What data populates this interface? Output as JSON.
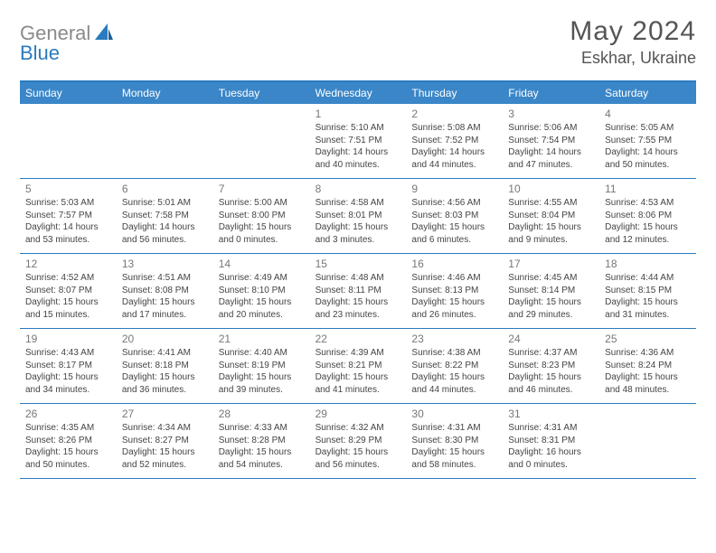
{
  "brand": {
    "part1": "General",
    "part2": "Blue"
  },
  "title": "May 2024",
  "location": "Eskhar, Ukraine",
  "calendar": {
    "header_bg": "#3a86c8",
    "rule_color": "#2a7bbf",
    "day_names": [
      "Sunday",
      "Monday",
      "Tuesday",
      "Wednesday",
      "Thursday",
      "Friday",
      "Saturday"
    ],
    "weeks": [
      [
        null,
        null,
        null,
        {
          "n": "1",
          "sr": "5:10 AM",
          "ss": "7:51 PM",
          "dl": "14 hours and 40 minutes."
        },
        {
          "n": "2",
          "sr": "5:08 AM",
          "ss": "7:52 PM",
          "dl": "14 hours and 44 minutes."
        },
        {
          "n": "3",
          "sr": "5:06 AM",
          "ss": "7:54 PM",
          "dl": "14 hours and 47 minutes."
        },
        {
          "n": "4",
          "sr": "5:05 AM",
          "ss": "7:55 PM",
          "dl": "14 hours and 50 minutes."
        }
      ],
      [
        {
          "n": "5",
          "sr": "5:03 AM",
          "ss": "7:57 PM",
          "dl": "14 hours and 53 minutes."
        },
        {
          "n": "6",
          "sr": "5:01 AM",
          "ss": "7:58 PM",
          "dl": "14 hours and 56 minutes."
        },
        {
          "n": "7",
          "sr": "5:00 AM",
          "ss": "8:00 PM",
          "dl": "15 hours and 0 minutes."
        },
        {
          "n": "8",
          "sr": "4:58 AM",
          "ss": "8:01 PM",
          "dl": "15 hours and 3 minutes."
        },
        {
          "n": "9",
          "sr": "4:56 AM",
          "ss": "8:03 PM",
          "dl": "15 hours and 6 minutes."
        },
        {
          "n": "10",
          "sr": "4:55 AM",
          "ss": "8:04 PM",
          "dl": "15 hours and 9 minutes."
        },
        {
          "n": "11",
          "sr": "4:53 AM",
          "ss": "8:06 PM",
          "dl": "15 hours and 12 minutes."
        }
      ],
      [
        {
          "n": "12",
          "sr": "4:52 AM",
          "ss": "8:07 PM",
          "dl": "15 hours and 15 minutes."
        },
        {
          "n": "13",
          "sr": "4:51 AM",
          "ss": "8:08 PM",
          "dl": "15 hours and 17 minutes."
        },
        {
          "n": "14",
          "sr": "4:49 AM",
          "ss": "8:10 PM",
          "dl": "15 hours and 20 minutes."
        },
        {
          "n": "15",
          "sr": "4:48 AM",
          "ss": "8:11 PM",
          "dl": "15 hours and 23 minutes."
        },
        {
          "n": "16",
          "sr": "4:46 AM",
          "ss": "8:13 PM",
          "dl": "15 hours and 26 minutes."
        },
        {
          "n": "17",
          "sr": "4:45 AM",
          "ss": "8:14 PM",
          "dl": "15 hours and 29 minutes."
        },
        {
          "n": "18",
          "sr": "4:44 AM",
          "ss": "8:15 PM",
          "dl": "15 hours and 31 minutes."
        }
      ],
      [
        {
          "n": "19",
          "sr": "4:43 AM",
          "ss": "8:17 PM",
          "dl": "15 hours and 34 minutes."
        },
        {
          "n": "20",
          "sr": "4:41 AM",
          "ss": "8:18 PM",
          "dl": "15 hours and 36 minutes."
        },
        {
          "n": "21",
          "sr": "4:40 AM",
          "ss": "8:19 PM",
          "dl": "15 hours and 39 minutes."
        },
        {
          "n": "22",
          "sr": "4:39 AM",
          "ss": "8:21 PM",
          "dl": "15 hours and 41 minutes."
        },
        {
          "n": "23",
          "sr": "4:38 AM",
          "ss": "8:22 PM",
          "dl": "15 hours and 44 minutes."
        },
        {
          "n": "24",
          "sr": "4:37 AM",
          "ss": "8:23 PM",
          "dl": "15 hours and 46 minutes."
        },
        {
          "n": "25",
          "sr": "4:36 AM",
          "ss": "8:24 PM",
          "dl": "15 hours and 48 minutes."
        }
      ],
      [
        {
          "n": "26",
          "sr": "4:35 AM",
          "ss": "8:26 PM",
          "dl": "15 hours and 50 minutes."
        },
        {
          "n": "27",
          "sr": "4:34 AM",
          "ss": "8:27 PM",
          "dl": "15 hours and 52 minutes."
        },
        {
          "n": "28",
          "sr": "4:33 AM",
          "ss": "8:28 PM",
          "dl": "15 hours and 54 minutes."
        },
        {
          "n": "29",
          "sr": "4:32 AM",
          "ss": "8:29 PM",
          "dl": "15 hours and 56 minutes."
        },
        {
          "n": "30",
          "sr": "4:31 AM",
          "ss": "8:30 PM",
          "dl": "15 hours and 58 minutes."
        },
        {
          "n": "31",
          "sr": "4:31 AM",
          "ss": "8:31 PM",
          "dl": "16 hours and 0 minutes."
        },
        null
      ]
    ]
  },
  "labels": {
    "sunrise": "Sunrise: ",
    "sunset": "Sunset: ",
    "daylight": "Daylight: "
  },
  "style": {
    "body_bg": "#ffffff",
    "daynum_color": "#777777",
    "info_color": "#444444",
    "title_color": "#555555",
    "info_fontsize": 10,
    "daynum_fontsize": 12,
    "title_fontsize": 30,
    "location_fontsize": 18
  }
}
